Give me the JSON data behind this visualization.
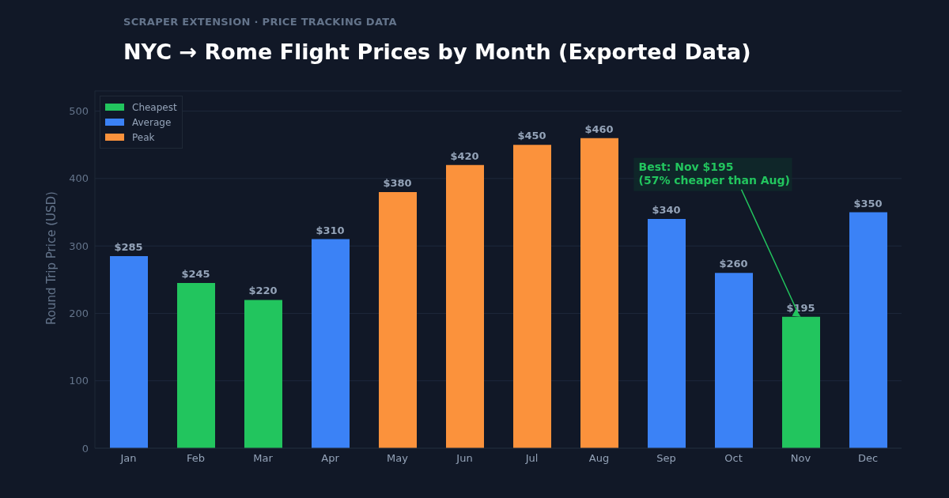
{
  "chart_data": {
    "type": "bar",
    "title": "NYC → Rome Flight Prices by Month (Exported Data)",
    "subtitle": "SCRAPER EXTENSION · PRICE TRACKING DATA",
    "ylabel": "Round Trip Price (USD)",
    "categories": [
      "Jan",
      "Feb",
      "Mar",
      "Apr",
      "May",
      "Jun",
      "Jul",
      "Aug",
      "Sep",
      "Oct",
      "Nov",
      "Dec"
    ],
    "stacked": true,
    "series": [
      {
        "name": "Cheapest",
        "color": "#22c55e",
        "values": [
          null,
          245,
          220,
          null,
          null,
          null,
          null,
          null,
          null,
          null,
          195,
          null
        ],
        "value_labels": [
          null,
          "$245",
          "$220",
          null,
          null,
          null,
          null,
          null,
          null,
          null,
          "$195",
          null
        ]
      },
      {
        "name": "Average",
        "color": "#3b82f6",
        "values": [
          285,
          null,
          null,
          310,
          null,
          null,
          null,
          null,
          340,
          260,
          null,
          350
        ],
        "value_labels": [
          "$285",
          null,
          null,
          "$310",
          null,
          null,
          null,
          null,
          "$340",
          "$260",
          null,
          "$350"
        ]
      },
      {
        "name": "Peak",
        "color": "#fb923c",
        "values": [
          null,
          null,
          null,
          null,
          380,
          420,
          450,
          460,
          null,
          null,
          null,
          null
        ],
        "value_labels": [
          null,
          null,
          null,
          null,
          "$380",
          "$420",
          "$450",
          "$460",
          null,
          null,
          null,
          null
        ]
      }
    ],
    "ylim": [
      0,
      530
    ],
    "yticks": [
      0,
      100,
      200,
      300,
      400,
      500
    ],
    "grid": "y",
    "legend": "top left",
    "annotations": [
      {
        "text": "Best: Nov $195\n(57% cheaper than Aug)",
        "x": "Nov",
        "y": 195
      }
    ]
  }
}
